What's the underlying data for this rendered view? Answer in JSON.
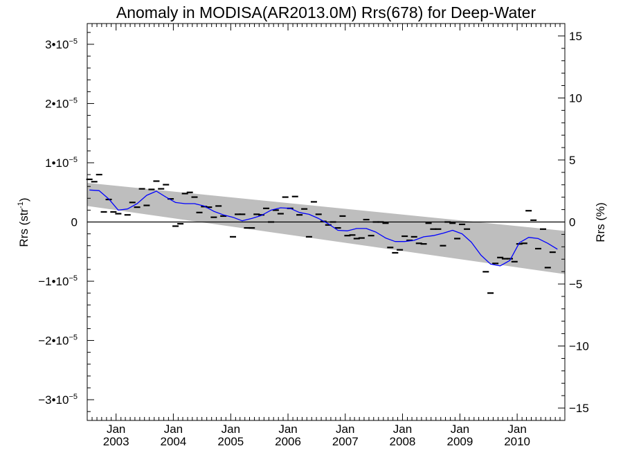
{
  "chart_data": {
    "type": "scatter",
    "title": "Anomaly in MODISA(AR2013.0M) Rrs(678) for Deep-Water",
    "ylabel_left": {
      "base": "Rrs (str",
      "sup": "-1",
      "close": ")"
    },
    "ylabel_right": "Rrs (%)",
    "x_range": [
      "2002-07-01",
      "2010-11-01"
    ],
    "ylim": [
      -3.35e-05,
      3.35e-05
    ],
    "y2lim": [
      -16.0,
      16.0
    ],
    "y_ticks": [
      {
        "value": -3e-05,
        "mant": "−3•10",
        "exp": "−5"
      },
      {
        "value": -2e-05,
        "mant": "−2•10",
        "exp": "−5"
      },
      {
        "value": -1e-05,
        "mant": "−1•10",
        "exp": "−5"
      },
      {
        "value": 0,
        "mant": "0",
        "exp": ""
      },
      {
        "value": 1e-05,
        "mant": "1•10",
        "exp": "−5"
      },
      {
        "value": 2e-05,
        "mant": "2•10",
        "exp": "−5"
      },
      {
        "value": 3e-05,
        "mant": "3•10",
        "exp": "−5"
      }
    ],
    "y2_ticks": [
      -15,
      -10,
      -5,
      0,
      5,
      10,
      15
    ],
    "x_ticks": [
      {
        "date": "2003-01-01",
        "month": "Jan",
        "year": "2003"
      },
      {
        "date": "2004-01-01",
        "month": "Jan",
        "year": "2004"
      },
      {
        "date": "2005-01-01",
        "month": "Jan",
        "year": "2005"
      },
      {
        "date": "2006-01-01",
        "month": "Jan",
        "year": "2006"
      },
      {
        "date": "2007-01-01",
        "month": "Jan",
        "year": "2007"
      },
      {
        "date": "2008-01-01",
        "month": "Jan",
        "year": "2008"
      },
      {
        "date": "2009-01-01",
        "month": "Jan",
        "year": "2009"
      },
      {
        "date": "2010-01-01",
        "month": "Jan",
        "year": "2010"
      }
    ],
    "band": {
      "color": "#bebebe",
      "start": {
        "date": "2002-07-01",
        "upper": 6.6e-06,
        "lower": 2.7e-06
      },
      "end": {
        "date": "2010-11-01",
        "upper": -1.5e-06,
        "lower": -8.8e-06
      }
    },
    "zero_line": 0,
    "series": [
      {
        "kind": "monthly-anomaly",
        "color": "#000000",
        "points": [
          {
            "date": "2002-07",
            "y": 7.2e-06
          },
          {
            "date": "2002-08",
            "y": 6.8e-06
          },
          {
            "date": "2002-09",
            "y": 8e-06
          },
          {
            "date": "2002-10",
            "y": 1.7e-06
          },
          {
            "date": "2002-11",
            "y": 3.8e-06
          },
          {
            "date": "2002-12",
            "y": 1.7e-06
          },
          {
            "date": "2003-01",
            "y": 1.4e-06
          },
          {
            "date": "2003-03",
            "y": 1.2e-06
          },
          {
            "date": "2003-04",
            "y": 3.3e-06
          },
          {
            "date": "2003-05",
            "y": 2.5e-06
          },
          {
            "date": "2003-06",
            "y": 5.6e-06
          },
          {
            "date": "2003-07",
            "y": 2.8e-06
          },
          {
            "date": "2003-08",
            "y": 5.5e-06
          },
          {
            "date": "2003-09",
            "y": 6.9e-06
          },
          {
            "date": "2003-10",
            "y": 5.6e-06
          },
          {
            "date": "2003-11",
            "y": 6.3e-06
          },
          {
            "date": "2003-12",
            "y": 3.9e-06
          },
          {
            "date": "2004-01",
            "y": -7e-07
          },
          {
            "date": "2004-02",
            "y": -3e-07
          },
          {
            "date": "2004-03",
            "y": 4.8e-06
          },
          {
            "date": "2004-04",
            "y": 5e-06
          },
          {
            "date": "2004-05",
            "y": 4.2e-06
          },
          {
            "date": "2004-06",
            "y": 1.6e-06
          },
          {
            "date": "2004-07",
            "y": 2.6e-06
          },
          {
            "date": "2004-08",
            "y": 2.5e-06
          },
          {
            "date": "2004-09",
            "y": 8e-07
          },
          {
            "date": "2004-10",
            "y": 2.7e-06
          },
          {
            "date": "2004-11",
            "y": 1e-06
          },
          {
            "date": "2005-01",
            "y": -2.5e-06
          },
          {
            "date": "2005-02",
            "y": 1.3e-06
          },
          {
            "date": "2005-03",
            "y": 1.3e-06
          },
          {
            "date": "2005-04",
            "y": -1e-06
          },
          {
            "date": "2005-05",
            "y": -1e-06
          },
          {
            "date": "2005-06",
            "y": 1.3e-06
          },
          {
            "date": "2005-07",
            "y": 1.2e-06
          },
          {
            "date": "2005-08",
            "y": 2.3e-06
          },
          {
            "date": "2005-09",
            "y": 0.0
          },
          {
            "date": "2005-10",
            "y": 2e-06
          },
          {
            "date": "2005-11",
            "y": 1.4e-06
          },
          {
            "date": "2005-12",
            "y": 4.2e-06
          },
          {
            "date": "2006-01",
            "y": 2.3e-06
          },
          {
            "date": "2006-02",
            "y": 4.3e-06
          },
          {
            "date": "2006-03",
            "y": 1.2e-06
          },
          {
            "date": "2006-04",
            "y": 2.2e-06
          },
          {
            "date": "2006-05",
            "y": -2.5e-06
          },
          {
            "date": "2006-06",
            "y": 3.4e-06
          },
          {
            "date": "2006-07",
            "y": 1.3e-06
          },
          {
            "date": "2006-08",
            "y": 1e-07
          },
          {
            "date": "2006-09",
            "y": -5e-07
          },
          {
            "date": "2006-10",
            "y": 0.0
          },
          {
            "date": "2006-11",
            "y": -1e-06
          },
          {
            "date": "2006-12",
            "y": 1e-06
          },
          {
            "date": "2007-01",
            "y": -2.3e-06
          },
          {
            "date": "2007-02",
            "y": -2.2e-06
          },
          {
            "date": "2007-03",
            "y": -2.8e-06
          },
          {
            "date": "2007-04",
            "y": -2.7e-06
          },
          {
            "date": "2007-05",
            "y": 4e-07
          },
          {
            "date": "2007-06",
            "y": -2.3e-06
          },
          {
            "date": "2007-07",
            "y": 0.0
          },
          {
            "date": "2007-08",
            "y": 0.0
          },
          {
            "date": "2007-09",
            "y": -2e-07
          },
          {
            "date": "2007-10",
            "y": -4.3e-06
          },
          {
            "date": "2007-11",
            "y": -5.2e-06
          },
          {
            "date": "2007-12",
            "y": -4.7e-06
          },
          {
            "date": "2008-01",
            "y": -2.4e-06
          },
          {
            "date": "2008-02",
            "y": -3.1e-06
          },
          {
            "date": "2008-03",
            "y": -2.5e-06
          },
          {
            "date": "2008-04",
            "y": -3.6e-06
          },
          {
            "date": "2008-05",
            "y": -3.7e-06
          },
          {
            "date": "2008-06",
            "y": -2e-07
          },
          {
            "date": "2008-07",
            "y": -1.2e-06
          },
          {
            "date": "2008-08",
            "y": -1.2e-06
          },
          {
            "date": "2008-09",
            "y": -4e-06
          },
          {
            "date": "2008-10",
            "y": 0.0
          },
          {
            "date": "2008-11",
            "y": -2e-07
          },
          {
            "date": "2008-12",
            "y": -2.8e-06
          },
          {
            "date": "2009-01",
            "y": -4e-07
          },
          {
            "date": "2009-02",
            "y": -1.2e-06
          },
          {
            "date": "2009-06",
            "y": -8.4e-06
          },
          {
            "date": "2009-07",
            "y": -1.2e-05
          },
          {
            "date": "2009-08",
            "y": -7e-06
          },
          {
            "date": "2009-09",
            "y": -6e-06
          },
          {
            "date": "2009-10",
            "y": -6.2e-06
          },
          {
            "date": "2009-11",
            "y": -6.2e-06
          },
          {
            "date": "2009-12",
            "y": -6.7e-06
          },
          {
            "date": "2010-01",
            "y": -3.7e-06
          },
          {
            "date": "2010-02",
            "y": -3.6e-06
          },
          {
            "date": "2010-03",
            "y": 1.9e-06
          },
          {
            "date": "2010-04",
            "y": 3e-07
          },
          {
            "date": "2010-05",
            "y": -4.5e-06
          },
          {
            "date": "2010-06",
            "y": -1.2e-06
          },
          {
            "date": "2010-07",
            "y": -7.7e-06
          },
          {
            "date": "2010-08",
            "y": -5.1e-06
          }
        ]
      },
      {
        "kind": "running-mean",
        "color": "#0000ff",
        "points": [
          {
            "date": "2002-07",
            "y": 5.4e-06
          },
          {
            "date": "2002-09",
            "y": 5.3e-06
          },
          {
            "date": "2002-11",
            "y": 3.9e-06
          },
          {
            "date": "2003-01",
            "y": 2e-06
          },
          {
            "date": "2003-03",
            "y": 2.2e-06
          },
          {
            "date": "2003-05",
            "y": 3.1e-06
          },
          {
            "date": "2003-07",
            "y": 4.5e-06
          },
          {
            "date": "2003-09",
            "y": 5.2e-06
          },
          {
            "date": "2003-11",
            "y": 4.2e-06
          },
          {
            "date": "2004-01",
            "y": 3.3e-06
          },
          {
            "date": "2004-03",
            "y": 3.1e-06
          },
          {
            "date": "2004-05",
            "y": 3.1e-06
          },
          {
            "date": "2004-07",
            "y": 2.7e-06
          },
          {
            "date": "2004-09",
            "y": 1.8e-06
          },
          {
            "date": "2004-11",
            "y": 1.2e-06
          },
          {
            "date": "2005-01",
            "y": 8e-07
          },
          {
            "date": "2005-03",
            "y": 2e-07
          },
          {
            "date": "2005-05",
            "y": 6e-07
          },
          {
            "date": "2005-07",
            "y": 1.1e-06
          },
          {
            "date": "2005-09",
            "y": 2e-06
          },
          {
            "date": "2005-11",
            "y": 2.4e-06
          },
          {
            "date": "2006-01",
            "y": 2.3e-06
          },
          {
            "date": "2006-03",
            "y": 1.6e-06
          },
          {
            "date": "2006-05",
            "y": 1.3e-06
          },
          {
            "date": "2006-07",
            "y": 6e-07
          },
          {
            "date": "2006-09",
            "y": -3e-07
          },
          {
            "date": "2006-11",
            "y": -1.4e-06
          },
          {
            "date": "2007-01",
            "y": -1.5e-06
          },
          {
            "date": "2007-03",
            "y": -1.1e-06
          },
          {
            "date": "2007-05",
            "y": -1.1e-06
          },
          {
            "date": "2007-07",
            "y": -1.7e-06
          },
          {
            "date": "2007-09",
            "y": -2.7e-06
          },
          {
            "date": "2007-11",
            "y": -3.3e-06
          },
          {
            "date": "2008-01",
            "y": -3.3e-06
          },
          {
            "date": "2008-03",
            "y": -3.1e-06
          },
          {
            "date": "2008-05",
            "y": -2.5e-06
          },
          {
            "date": "2008-07",
            "y": -2.3e-06
          },
          {
            "date": "2008-09",
            "y": -1.9e-06
          },
          {
            "date": "2008-11",
            "y": -1.4e-06
          },
          {
            "date": "2009-01",
            "y": -2e-06
          },
          {
            "date": "2009-03",
            "y": -3.4e-06
          },
          {
            "date": "2009-05",
            "y": -5.6e-06
          },
          {
            "date": "2009-07",
            "y": -7.1e-06
          },
          {
            "date": "2009-09",
            "y": -7.4e-06
          },
          {
            "date": "2009-11",
            "y": -6.5e-06
          },
          {
            "date": "2010-01",
            "y": -3.5e-06
          },
          {
            "date": "2010-03",
            "y": -2.6e-06
          },
          {
            "date": "2010-05",
            "y": -2.8e-06
          },
          {
            "date": "2010-07",
            "y": -3.6e-06
          },
          {
            "date": "2010-09",
            "y": -4.6e-06
          }
        ]
      }
    ],
    "grid": false,
    "legend": "none"
  }
}
